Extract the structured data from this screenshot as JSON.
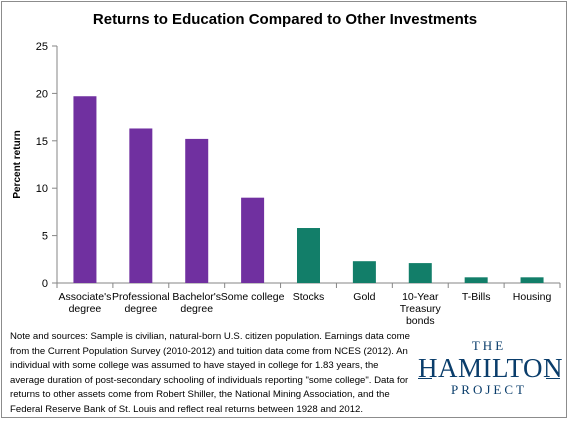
{
  "chart_data": {
    "type": "bar",
    "title": "Returns to Education Compared to Other Investments",
    "ylabel": "Percent return",
    "xlabel": "",
    "ylim": [
      0,
      25
    ],
    "yticks": [
      0,
      5,
      10,
      15,
      20,
      25
    ],
    "grid": false,
    "categories": [
      "Associate's degree",
      "Professional degree",
      "Bachelor's degree",
      "Some college",
      "Stocks",
      "Gold",
      "10-Year Treasury bonds",
      "T-Bills",
      "Housing"
    ],
    "category_lines": [
      [
        "Associate's",
        "degree"
      ],
      [
        "Professional",
        "degree"
      ],
      [
        "Bachelor's",
        "degree"
      ],
      [
        "Some college"
      ],
      [
        "Stocks"
      ],
      [
        "Gold"
      ],
      [
        "10-Year",
        "Treasury",
        "bonds"
      ],
      [
        "T-Bills"
      ],
      [
        "Housing"
      ]
    ],
    "values": [
      19.7,
      16.3,
      15.2,
      9.0,
      5.8,
      2.3,
      2.1,
      0.6,
      0.6
    ],
    "bar_colors": [
      "#7030a0",
      "#7030a0",
      "#7030a0",
      "#7030a0",
      "#127e69",
      "#127e69",
      "#127e69",
      "#127e69",
      "#127e69"
    ]
  },
  "footnote": {
    "text": "Note and sources: Sample is civilian, natural-born U.S. citizen population.  Earnings data come from the Current Population Survey (2010-2012) and tuition data come from NCES (2012). An individual with some college was assumed to have stayed in college for 1.83 years, the average duration of post-secondary schooling of individuals reporting \"some college\". Data for returns to other assets come from Robert Shiller, the National Mining Association, and the Federal Reserve Bank of St. Louis and reflect real returns between 1928 and 2012."
  },
  "logo": {
    "top": "THE",
    "main": "HAMILTON",
    "bottom": "PROJECT"
  }
}
